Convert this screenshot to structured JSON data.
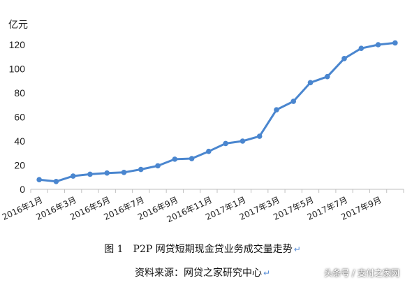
{
  "chart_data": {
    "type": "line",
    "unit_label": "亿元",
    "title": "",
    "xlabel": "",
    "ylabel": "",
    "ylim": [
      0,
      120
    ],
    "yticks": [
      0,
      20,
      40,
      60,
      80,
      100,
      120
    ],
    "grid": false,
    "legend": "none",
    "x_tick_labels": [
      "2016年1月",
      "2016年3月",
      "2016年5月",
      "2016年7月",
      "2016年9月",
      "2016年11月",
      "2017年1月",
      "2017年3月",
      "2017年5月",
      "2017年7月",
      "2017年9月"
    ],
    "x": [
      "2016-01",
      "2016-02",
      "2016-03",
      "2016-04",
      "2016-05",
      "2016-06",
      "2016-07",
      "2016-08",
      "2016-09",
      "2016-10",
      "2016-11",
      "2016-12",
      "2017-01",
      "2017-02",
      "2017-03",
      "2017-04",
      "2017-05",
      "2017-06",
      "2017-07",
      "2017-08",
      "2017-09",
      "2017-10"
    ],
    "series": [
      {
        "values": [
          8,
          6.5,
          11,
          12.5,
          13.5,
          14,
          16.5,
          19.5,
          25,
          25.5,
          31.5,
          38,
          40,
          44,
          66,
          73,
          88.5,
          93.5,
          108.5,
          117,
          120,
          121.5
        ],
        "color": "#4a86cf"
      }
    ]
  },
  "caption": {
    "figure": "图 1　P2P 网贷短期现金贷业务成交量走势",
    "source": "资料来源：网贷之家研究中心",
    "return_mark": "↵"
  },
  "watermark": "头条号 / 支付之家网"
}
